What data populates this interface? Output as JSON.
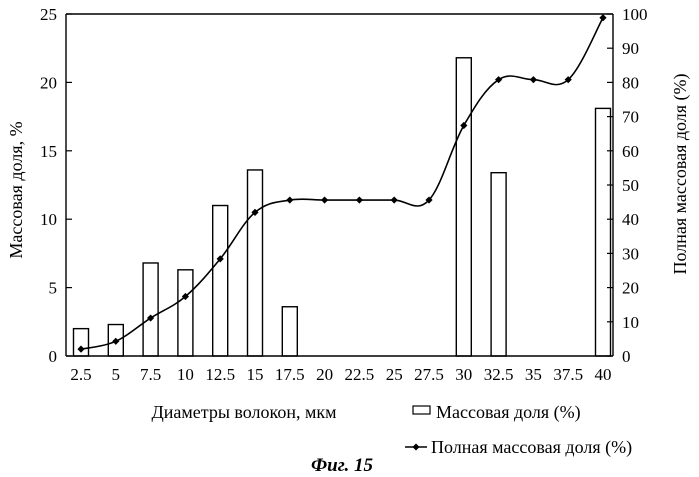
{
  "chart_data": {
    "type": "bar+line",
    "categories": [
      "2.5",
      "5",
      "7.5",
      "10",
      "12.5",
      "15",
      "17.5",
      "20",
      "22.5",
      "25",
      "27.5",
      "30",
      "32.5",
      "35",
      "37.5",
      "40"
    ],
    "series": [
      {
        "name": "Массовая доля (%)",
        "type": "bar",
        "axis": "left",
        "values": [
          2.0,
          2.3,
          6.8,
          6.3,
          11.0,
          13.6,
          3.6,
          0,
          0,
          0,
          0,
          21.8,
          13.4,
          0,
          0,
          18.1
        ]
      },
      {
        "name": "Полная массовая доля (%)",
        "type": "line",
        "axis": "right",
        "values": [
          2.0,
          4.3,
          11.1,
          17.4,
          28.4,
          42.0,
          45.6,
          45.6,
          45.6,
          45.6,
          45.6,
          67.4,
          80.8,
          80.8,
          80.8,
          98.9
        ]
      }
    ],
    "xlabel": "Диаметры волокон, мкм",
    "ylabel": "Массовая доля, %",
    "y2label": "Полная массовая доля (%)",
    "ylim": [
      0,
      25
    ],
    "y2lim": [
      0,
      100
    ],
    "yticks": [
      0,
      5,
      10,
      15,
      20,
      25
    ],
    "y2ticks": [
      0,
      10,
      20,
      30,
      40,
      50,
      60,
      70,
      80,
      90,
      100
    ],
    "legend": [
      "Массовая доля (%)",
      "Полная массовая доля (%)"
    ],
    "legend_position": "bottom-right",
    "caption": "Фиг. 15",
    "grid": false
  }
}
